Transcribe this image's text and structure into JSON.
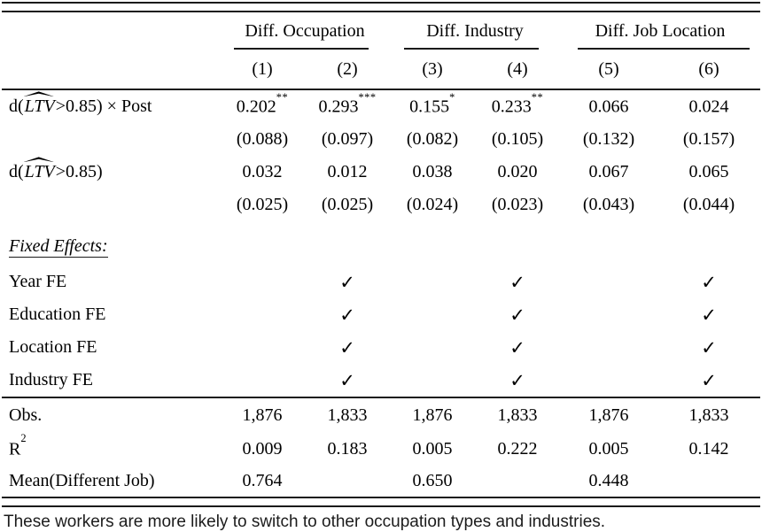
{
  "colors": {
    "background": "#ffffff",
    "text": "#000000",
    "rule": "#1a1a1a"
  },
  "table": {
    "groups": [
      "Diff. Occupation",
      "Diff. Industry",
      "Diff. Job Location"
    ],
    "col_numbers": [
      "(1)",
      "(2)",
      "(3)",
      "(4)",
      "(5)",
      "(6)"
    ],
    "coef1": {
      "label": {
        "pre": "d(",
        "var": "LTV",
        "post": ">0.85) × Post"
      },
      "cells": [
        {
          "v": "0.202",
          "s": "**"
        },
        {
          "v": "0.293",
          "s": "***"
        },
        {
          "v": "0.155",
          "s": "*"
        },
        {
          "v": "0.233",
          "s": "**"
        },
        {
          "v": "0.066",
          "s": ""
        },
        {
          "v": "0.024",
          "s": ""
        }
      ]
    },
    "se1": [
      "(0.088)",
      "(0.097)",
      "(0.082)",
      "(0.105)",
      "(0.132)",
      "(0.157)"
    ],
    "coef2": {
      "label": {
        "pre": "d(",
        "var": "LTV",
        "post": ">0.85)"
      },
      "cells": [
        "0.032",
        "0.012",
        "0.038",
        "0.020",
        "0.067",
        "0.065"
      ]
    },
    "se2": [
      "(0.025)",
      "(0.025)",
      "(0.024)",
      "(0.023)",
      "(0.043)",
      "(0.044)"
    ],
    "section_label": "Fixed Effects:",
    "fe_rows": [
      {
        "label": "Year FE",
        "cells": [
          "",
          "✓",
          "",
          "✓",
          "",
          "✓"
        ]
      },
      {
        "label": "Education FE",
        "cells": [
          "",
          "✓",
          "",
          "✓",
          "",
          "✓"
        ]
      },
      {
        "label": "Location FE",
        "cells": [
          "",
          "✓",
          "",
          "✓",
          "",
          "✓"
        ]
      },
      {
        "label": "Industry FE",
        "cells": [
          "",
          "✓",
          "",
          "✓",
          "",
          "✓"
        ]
      }
    ],
    "obs": {
      "label": "Obs.",
      "cells": [
        "1,876",
        "1,833",
        "1,876",
        "1,833",
        "1,876",
        "1,833"
      ]
    },
    "r2": {
      "label": "R",
      "sup": "2",
      "cells": [
        "0.009",
        "0.183",
        "0.005",
        "0.222",
        "0.005",
        "0.142"
      ]
    },
    "mean": {
      "label": "Mean(Different Job)",
      "cells": [
        "0.764",
        "",
        "0.650",
        "",
        "0.448",
        ""
      ]
    }
  },
  "caption": "These workers are more likely to switch to other occupation types and industries."
}
